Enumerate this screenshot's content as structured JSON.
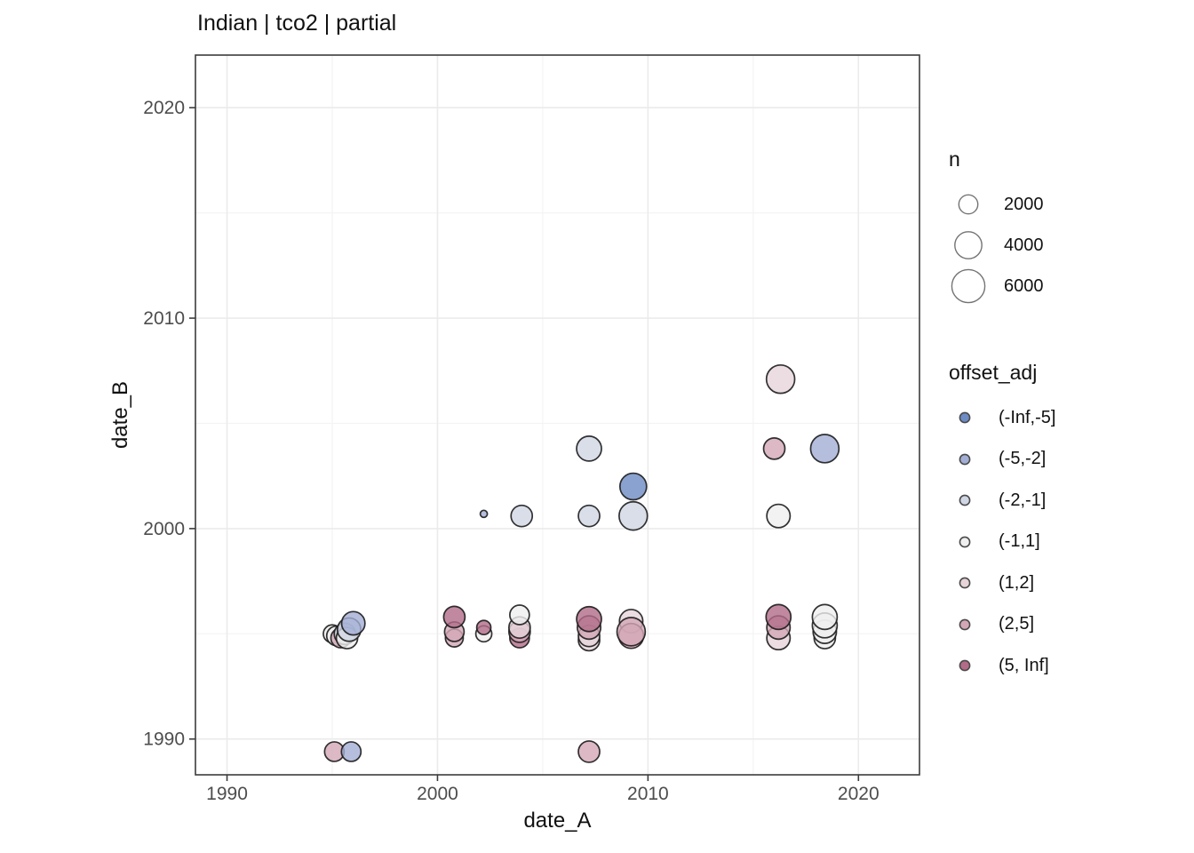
{
  "title": "Indian | tco2 | partial",
  "chart_data": {
    "type": "scatter",
    "title": "Indian | tco2 | partial",
    "xlabel": "date_A",
    "ylabel": "date_B",
    "xlim": [
      1988.5,
      2022.9
    ],
    "ylim": [
      1988.3,
      2022.5
    ],
    "x_ticks": [
      1990,
      2000,
      2010,
      2020
    ],
    "y_ticks": [
      1990,
      2000,
      2010,
      2020
    ],
    "x_minor": [
      1995,
      2005,
      2015
    ],
    "y_minor": [
      1995,
      2005,
      2015
    ],
    "grid": true,
    "legend_position": "right",
    "size_legend": {
      "title": "n",
      "entries": [
        "2000",
        "4000",
        "6000"
      ],
      "values": [
        2000,
        4000,
        6000
      ]
    },
    "color_legend": {
      "title": "offset_adj",
      "entries": [
        {
          "label": "(-Inf,-5]",
          "color": "#6d8bc4"
        },
        {
          "label": "(-5,-2]",
          "color": "#a3aed4"
        },
        {
          "label": "(-2,-1]",
          "color": "#d0d6e4"
        },
        {
          "label": "(-1,1]",
          "color": "#efefef"
        },
        {
          "label": "(1,2]",
          "color": "#e6d4d9"
        },
        {
          "label": "(2,5]",
          "color": "#d3a7b6"
        },
        {
          "label": "(5, Inf]",
          "color": "#b26c88"
        }
      ]
    },
    "points": [
      {
        "x": 1995.0,
        "y": 1995.0,
        "n": 1750,
        "bin": "(-1,1]"
      },
      {
        "x": 1995.2,
        "y": 1994.9,
        "n": 2100,
        "bin": "(-1,1]"
      },
      {
        "x": 1995.4,
        "y": 1994.8,
        "n": 2100,
        "bin": "(2,5]"
      },
      {
        "x": 1995.6,
        "y": 1995.0,
        "n": 2500,
        "bin": "(-2,-1]"
      },
      {
        "x": 1995.7,
        "y": 1994.8,
        "n": 2500,
        "bin": "(-1,1]"
      },
      {
        "x": 1995.8,
        "y": 1995.2,
        "n": 3000,
        "bin": "(-2,-1]"
      },
      {
        "x": 1996.0,
        "y": 1995.5,
        "n": 3000,
        "bin": "(-5,-2]"
      },
      {
        "x": 1995.1,
        "y": 1989.4,
        "n": 2100,
        "bin": "(2,5]"
      },
      {
        "x": 1995.9,
        "y": 1989.4,
        "n": 2100,
        "bin": "(-5,-2]"
      },
      {
        "x": 2000.8,
        "y": 1994.8,
        "n": 1750,
        "bin": "(2,5]"
      },
      {
        "x": 2000.8,
        "y": 1995.1,
        "n": 2100,
        "bin": "(2,5]"
      },
      {
        "x": 2000.8,
        "y": 1995.8,
        "n": 2500,
        "bin": "(5, Inf]"
      },
      {
        "x": 2002.2,
        "y": 1995.0,
        "n": 1400,
        "bin": "(-1,1]"
      },
      {
        "x": 2002.2,
        "y": 1995.3,
        "n": 1100,
        "bin": "(5, Inf]"
      },
      {
        "x": 2002.2,
        "y": 2000.7,
        "n": 280,
        "bin": "(-5,-2]"
      },
      {
        "x": 2003.9,
        "y": 1994.8,
        "n": 2100,
        "bin": "(5, Inf]"
      },
      {
        "x": 2003.9,
        "y": 1995.1,
        "n": 2500,
        "bin": "(2,5]"
      },
      {
        "x": 2003.9,
        "y": 1995.3,
        "n": 2500,
        "bin": "(1,2]"
      },
      {
        "x": 2003.9,
        "y": 1995.9,
        "n": 2100,
        "bin": "(-1,1]"
      },
      {
        "x": 2004.0,
        "y": 2000.6,
        "n": 2500,
        "bin": "(-2,-1]"
      },
      {
        "x": 2007.2,
        "y": 2003.8,
        "n": 3400,
        "bin": "(-2,-1]"
      },
      {
        "x": 2007.2,
        "y": 2000.6,
        "n": 2500,
        "bin": "(-2,-1]"
      },
      {
        "x": 2007.2,
        "y": 1994.7,
        "n": 2500,
        "bin": "(1,2]"
      },
      {
        "x": 2007.2,
        "y": 1994.9,
        "n": 2500,
        "bin": "(1,2]"
      },
      {
        "x": 2007.2,
        "y": 1995.3,
        "n": 3000,
        "bin": "(2,5]"
      },
      {
        "x": 2007.2,
        "y": 1995.7,
        "n": 3400,
        "bin": "(5, Inf]"
      },
      {
        "x": 2007.2,
        "y": 1989.4,
        "n": 2500,
        "bin": "(2,5]"
      },
      {
        "x": 2009.3,
        "y": 2002.0,
        "n": 3900,
        "bin": "(-Inf,-5]"
      },
      {
        "x": 2009.3,
        "y": 2000.6,
        "n": 4400,
        "bin": "(-2,-1]"
      },
      {
        "x": 2009.2,
        "y": 1995.6,
        "n": 3000,
        "bin": "(1,2]"
      },
      {
        "x": 2009.2,
        "y": 1994.9,
        "n": 3400,
        "bin": "(2,5]"
      },
      {
        "x": 2009.2,
        "y": 1995.1,
        "n": 4400,
        "bin": "(2,5]"
      },
      {
        "x": 2016.3,
        "y": 2007.1,
        "n": 4400,
        "bin": "(1,2]"
      },
      {
        "x": 2016.0,
        "y": 2003.8,
        "n": 2500,
        "bin": "(2,5]"
      },
      {
        "x": 2016.2,
        "y": 2000.6,
        "n": 3000,
        "bin": "(-1,1]"
      },
      {
        "x": 2016.2,
        "y": 1994.8,
        "n": 3000,
        "bin": "(1,2]"
      },
      {
        "x": 2016.2,
        "y": 1995.3,
        "n": 3000,
        "bin": "(2,5]"
      },
      {
        "x": 2016.2,
        "y": 1995.8,
        "n": 3400,
        "bin": "(5, Inf]"
      },
      {
        "x": 2018.4,
        "y": 2003.8,
        "n": 4400,
        "bin": "(-5,-2]"
      },
      {
        "x": 2018.4,
        "y": 1994.8,
        "n": 2500,
        "bin": "(-1,1]"
      },
      {
        "x": 2018.4,
        "y": 1995.1,
        "n": 3000,
        "bin": "(-1,1]"
      },
      {
        "x": 2018.4,
        "y": 1995.4,
        "n": 3400,
        "bin": "(-1,1]"
      },
      {
        "x": 2018.4,
        "y": 1995.8,
        "n": 3400,
        "bin": "(-1,1]"
      }
    ]
  },
  "style_colors": {
    "tick_label": "#4d4d4d",
    "grid_major": "#ebebeb",
    "grid_minor": "#f4f4f4",
    "panel_border": "#3c3c3c",
    "point_stroke": "#1c1c1c",
    "size_key_stroke": "#737373"
  }
}
